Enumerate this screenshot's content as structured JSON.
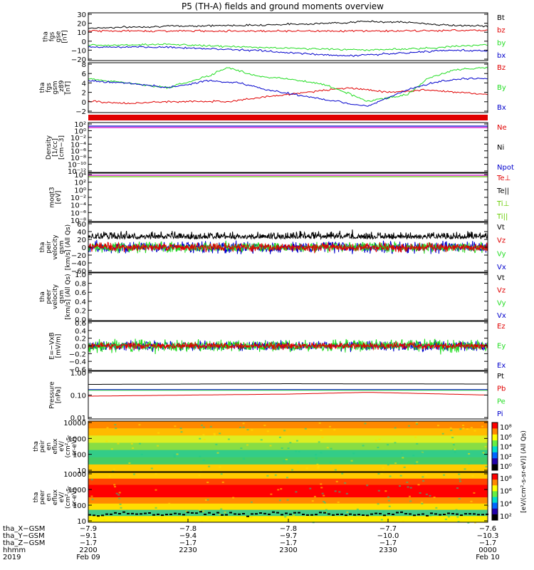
{
  "title": "P5 (TH-A) fields and ground moments overview",
  "colors": {
    "black": "#000000",
    "red": "#e00000",
    "green": "#22dd22",
    "blue": "#0000cc",
    "lime": "#66cc00",
    "yellow": "#cccc00",
    "magenta": "#cc00cc"
  },
  "panels": [
    {
      "id": "fgs",
      "ylabel": [
        "tha",
        "fgs",
        "gse",
        "[nT]"
      ],
      "ticks": [
        "30",
        "20",
        "10",
        "0",
        "−10",
        "−20"
      ],
      "legend": [
        {
          "text": "Bt",
          "color": "black"
        },
        {
          "text": "bz",
          "color": "red"
        },
        {
          "text": "by",
          "color": "green"
        },
        {
          "text": "bx",
          "color": "blue"
        }
      ],
      "chart_data": {
        "type": "line",
        "ylim": [
          -20,
          30
        ],
        "series": [
          {
            "name": "Bt",
            "color": "black",
            "points": [
              [
                0,
                14
              ],
              [
                0.2,
                16
              ],
              [
                0.4,
                17
              ],
              [
                0.5,
                18
              ],
              [
                0.6,
                19
              ],
              [
                0.7,
                21
              ],
              [
                0.8,
                20
              ],
              [
                0.9,
                17
              ],
              [
                1,
                16
              ]
            ]
          },
          {
            "name": "bz",
            "color": "red",
            "points": [
              [
                0,
                11
              ],
              [
                0.3,
                11
              ],
              [
                0.6,
                11
              ],
              [
                0.8,
                11
              ],
              [
                1,
                12
              ]
            ]
          },
          {
            "name": "by",
            "color": "green",
            "points": [
              [
                0,
                -4
              ],
              [
                0.2,
                -3
              ],
              [
                0.4,
                -6
              ],
              [
                0.6,
                -8
              ],
              [
                0.7,
                -9
              ],
              [
                0.85,
                -7
              ],
              [
                1,
                -3
              ]
            ]
          },
          {
            "name": "bx",
            "color": "blue",
            "points": [
              [
                0,
                -6
              ],
              [
                0.2,
                -6
              ],
              [
                0.4,
                -9
              ],
              [
                0.55,
                -13
              ],
              [
                0.65,
                -15
              ],
              [
                0.8,
                -12
              ],
              [
                0.9,
                -9
              ],
              [
                1,
                -10
              ]
            ]
          }
        ]
      }
    },
    {
      "id": "fgs_gsm",
      "ylabel": [
        "tha",
        "fgs",
        "gsm",
        "_z89",
        "[nT]"
      ],
      "ticks": [
        "8",
        "6",
        "4",
        "2",
        "0",
        "−2"
      ],
      "legend": [
        {
          "text": "Bz",
          "color": "red"
        },
        {
          "text": "By",
          "color": "green"
        },
        {
          "text": "Bx",
          "color": "blue"
        }
      ],
      "chart_data": {
        "type": "line",
        "ylim": [
          -3,
          8
        ],
        "series": [
          {
            "name": "Bz",
            "color": "red",
            "points": [
              [
                0,
                -0.5
              ],
              [
                0.1,
                -1
              ],
              [
                0.2,
                -0.6
              ],
              [
                0.35,
                -0.5
              ],
              [
                0.45,
                0.5
              ],
              [
                0.55,
                1.5
              ],
              [
                0.65,
                2.5
              ],
              [
                0.75,
                1.5
              ],
              [
                0.85,
                2
              ],
              [
                1,
                1
              ]
            ]
          },
          {
            "name": "By",
            "color": "green",
            "points": [
              [
                0,
                4.5
              ],
              [
                0.1,
                3.5
              ],
              [
                0.2,
                2.5
              ],
              [
                0.3,
                5
              ],
              [
                0.35,
                7
              ],
              [
                0.42,
                5
              ],
              [
                0.5,
                4.5
              ],
              [
                0.6,
                3
              ],
              [
                0.7,
                -0.5
              ],
              [
                0.8,
                1
              ],
              [
                0.85,
                4.5
              ],
              [
                0.92,
                6.5
              ],
              [
                1,
                7
              ]
            ]
          },
          {
            "name": "Bx",
            "color": "blue",
            "points": [
              [
                0,
                4
              ],
              [
                0.1,
                3.5
              ],
              [
                0.2,
                2.5
              ],
              [
                0.3,
                4
              ],
              [
                0.38,
                3.5
              ],
              [
                0.45,
                2
              ],
              [
                0.55,
                0.5
              ],
              [
                0.65,
                -1
              ],
              [
                0.7,
                -1.5
              ],
              [
                0.8,
                2
              ],
              [
                0.88,
                4
              ],
              [
                0.95,
                4.5
              ],
              [
                1,
                4.5
              ]
            ]
          }
        ]
      }
    },
    {
      "id": "density",
      "ylabel": [
        "Density",
        "[1/cc]",
        "[cm−3]"
      ],
      "ticks": [
        "10²",
        "10⁰",
        "10⁻²",
        "10⁻⁴",
        "10⁻⁶",
        "10⁻⁸",
        "10⁻¹⁰",
        "10⁻¹²"
      ],
      "legend": [
        {
          "text": "Ne",
          "color": "red"
        },
        {
          "text": "Ni",
          "color": "black"
        },
        {
          "text": "Npot",
          "color": "blue"
        }
      ],
      "chart_data": {
        "type": "line",
        "yscale": "log",
        "series": []
      }
    },
    {
      "id": "temp",
      "ylabel": [
        "moqt3",
        "[eV]"
      ],
      "ticks": [
        "10⁴",
        "10²",
        "10⁰",
        "10⁻²",
        "10⁻⁴",
        "10⁻⁶",
        "10⁻⁸"
      ],
      "legend": [
        {
          "text": "Te⊥",
          "color": "red"
        },
        {
          "text": "Te||",
          "color": "black"
        },
        {
          "text": "Ti⊥",
          "color": "lime"
        },
        {
          "text": "Ti||",
          "color": "lime"
        }
      ],
      "chart_data": {
        "type": "line",
        "yscale": "log",
        "series": []
      }
    },
    {
      "id": "vel_ion",
      "ylabel": [
        "tha",
        "peir",
        "velocity",
        "gsm",
        "[km/s] (All Qs)"
      ],
      "ticks": [
        "60",
        "40",
        "20",
        "0",
        "−20",
        "−40",
        "−60"
      ],
      "legend": [
        {
          "text": "Vt",
          "color": "black"
        },
        {
          "text": "Vz",
          "color": "red"
        },
        {
          "text": "Vy",
          "color": "green"
        },
        {
          "text": "Vx",
          "color": "blue"
        }
      ],
      "chart_data": {
        "type": "line",
        "ylim": [
          -60,
          60
        ],
        "series": [
          {
            "name": "Vt",
            "color": "black",
            "mean": 20,
            "noise": 12
          },
          {
            "name": "Vx",
            "color": "blue",
            "mean": 0,
            "noise": 14
          },
          {
            "name": "Vy",
            "color": "green",
            "mean": 0,
            "noise": 12
          },
          {
            "name": "Vz",
            "color": "red",
            "mean": 0,
            "noise": 10
          }
        ]
      }
    },
    {
      "id": "vel_e",
      "ylabel": [
        "tha",
        "peer",
        "velocity",
        "gsm",
        "[km/s] (All Qs)"
      ],
      "ticks": [
        "1.0",
        "0.8",
        "0.6",
        "0.4",
        "0.2",
        "0.0"
      ],
      "legend": [
        {
          "text": "Vt",
          "color": "black"
        },
        {
          "text": "Vz",
          "color": "red"
        },
        {
          "text": "Vy",
          "color": "green"
        },
        {
          "text": "Vx",
          "color": "blue"
        }
      ],
      "chart_data": {
        "type": "line",
        "ylim": [
          0,
          1
        ],
        "series": []
      }
    },
    {
      "id": "efield",
      "ylabel": [
        "E=−VxB",
        "[mV/m]"
      ],
      "ticks": [
        "0.6",
        "0.4",
        "0.2",
        "0.0",
        "−0.2",
        "−0.4",
        "−0.6"
      ],
      "legend": [
        {
          "text": "Ez",
          "color": "red"
        },
        {
          "text": "Ey",
          "color": "green"
        },
        {
          "text": "Ex",
          "color": "blue"
        }
      ],
      "chart_data": {
        "type": "line",
        "ylim": [
          -0.6,
          0.6
        ],
        "series": [
          {
            "name": "Ex",
            "color": "blue",
            "mean": 0,
            "noise": 0.12
          },
          {
            "name": "Ey",
            "color": "green",
            "mean": 0,
            "noise": 0.15
          },
          {
            "name": "Ez",
            "color": "red",
            "mean": 0,
            "noise": 0.08
          }
        ]
      }
    },
    {
      "id": "pressure",
      "ylabel": [
        "Pressure",
        "[nPa]"
      ],
      "ticks": [
        "1.00",
        "0.10",
        "0.01"
      ],
      "legend": [
        {
          "text": "Pt",
          "color": "black"
        },
        {
          "text": "Pb",
          "color": "red"
        },
        {
          "text": "Pe",
          "color": "green"
        },
        {
          "text": "Pi",
          "color": "blue"
        }
      ],
      "chart_data": {
        "type": "line",
        "yscale": "log",
        "ylim": [
          0.01,
          1
        ],
        "series": [
          {
            "name": "Pt",
            "color": "black",
            "points": [
              [
                0,
                0.28
              ],
              [
                0.5,
                0.3
              ],
              [
                1,
                0.29
              ]
            ]
          },
          {
            "name": "Pb",
            "color": "red",
            "points": [
              [
                0,
                0.09
              ],
              [
                0.25,
                0.1
              ],
              [
                0.5,
                0.11
              ],
              [
                0.7,
                0.13
              ],
              [
                0.9,
                0.11
              ],
              [
                1,
                0.1
              ]
            ]
          },
          {
            "name": "Pe",
            "color": "green",
            "points": [
              [
                0,
                0.16
              ],
              [
                0.5,
                0.16
              ],
              [
                1,
                0.16
              ]
            ]
          },
          {
            "name": "Pi",
            "color": "blue",
            "points": [
              [
                0,
                0.17
              ],
              [
                0.5,
                0.17
              ],
              [
                1,
                0.17
              ]
            ]
          }
        ]
      }
    },
    {
      "id": "ion_spec",
      "ylabel": [
        "tha",
        "peir",
        "en",
        "eflux",
        "eV/",
        "(cm²-s-",
        "sr-eV)"
      ],
      "ticks": [
        "10000",
        "1000",
        "100",
        "10"
      ],
      "chart_data": {
        "type": "heatmap",
        "ylim": [
          5,
          20000
        ]
      }
    },
    {
      "id": "e_spec",
      "ylabel": [
        "tha",
        "peer",
        "en",
        "eflux",
        "eV/",
        "(cm²-s-",
        "sr-eV)"
      ],
      "ticks": [
        "10000",
        "1000",
        "100",
        "10"
      ],
      "chart_data": {
        "type": "heatmap",
        "ylim": [
          5,
          20000
        ]
      }
    }
  ],
  "colorbar_ion": {
    "ticks": [
      "10⁸",
      "10⁶",
      "10⁴",
      "10²",
      "10⁰"
    ]
  },
  "colorbar_e": {
    "ticks": [
      "10⁸",
      "10⁶",
      "10⁴",
      "10²"
    ]
  },
  "colorbar_label": "[eV/(cm²-s-sr-eV)] (All Qs)",
  "xaxis": {
    "rows": [
      {
        "label": "tha_X−GSM",
        "values": [
          "−7.9",
          "−7.8",
          "−7.8",
          "−7.7",
          "−7.6"
        ]
      },
      {
        "label": "tha_Y−GSM",
        "values": [
          "−9.1",
          "−9.4",
          "−9.7",
          "−10.0",
          "−10.3"
        ]
      },
      {
        "label": "tha_Z−GSM",
        "values": [
          "−1.7",
          "−1.7",
          "−1.7",
          "−1.7",
          "−1.7"
        ]
      },
      {
        "label": "hhmm",
        "values": [
          "2200",
          "2230",
          "2300",
          "2330",
          "0000"
        ]
      },
      {
        "label": "2019",
        "values": [
          "Feb 09",
          "",
          "",
          "",
          "Feb 10"
        ]
      }
    ]
  }
}
